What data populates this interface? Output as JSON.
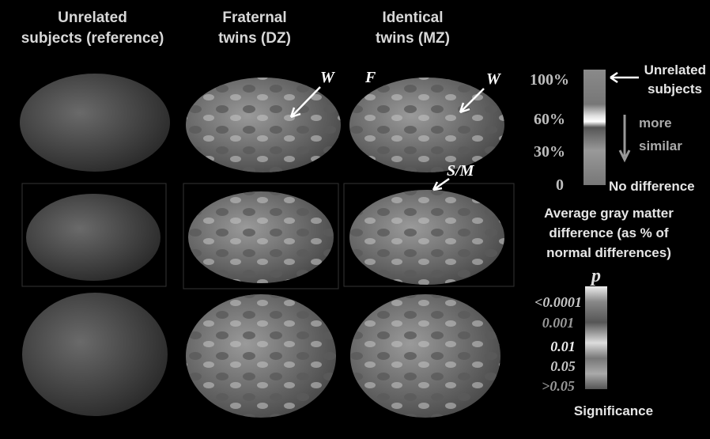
{
  "columns": [
    {
      "lines": [
        "Unrelated",
        "subjects (reference)"
      ]
    },
    {
      "lines": [
        "Fraternal",
        "twins (DZ)"
      ]
    },
    {
      "lines": [
        "Identical",
        "twins (MZ)"
      ]
    }
  ],
  "annotations": [
    "W",
    "F",
    "W",
    "S/M"
  ],
  "difference_scale": {
    "ticks": [
      "100%",
      "60%",
      "30%",
      "0"
    ],
    "top_label": [
      "Unrelated",
      "subjects"
    ],
    "middle_label": [
      "more",
      "similar"
    ],
    "bottom_label": "No difference",
    "caption": [
      "Average gray matter",
      "difference (as % of",
      "normal differences)"
    ]
  },
  "significance_scale": {
    "symbol": "p",
    "ticks": [
      "<0.0001",
      "0.001",
      "0.01",
      "0.05",
      ">0.05"
    ],
    "caption": "Significance"
  }
}
